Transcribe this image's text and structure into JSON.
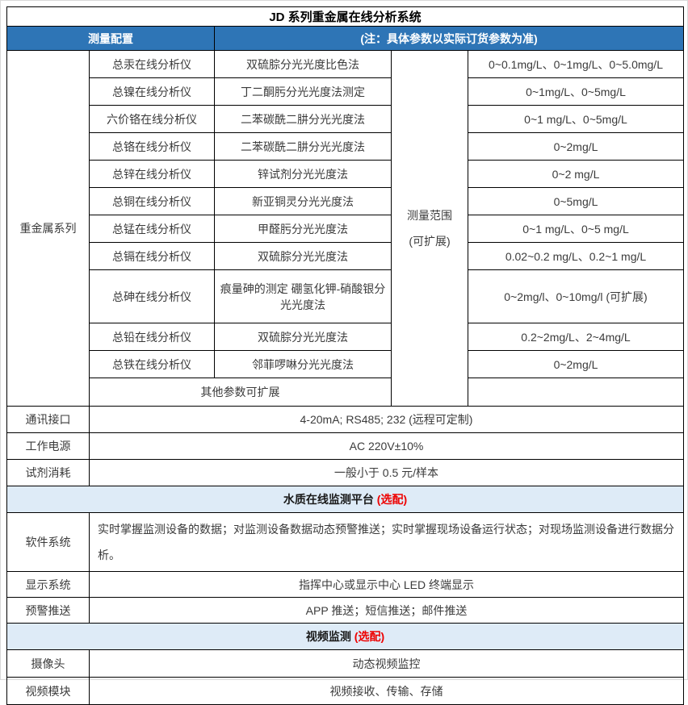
{
  "title": "JD 系列重金属在线分析系统",
  "header": {
    "left": "测量配置",
    "right": "(注：具体参数以实际订货参数为准)"
  },
  "series": {
    "group_label": "重金属系列",
    "range_label_line1": "测量范围",
    "range_label_line2": "(可扩展)",
    "rows": [
      {
        "instrument": "总汞在线分析仪",
        "method": "双硫腙分光光度比色法",
        "range": "0~0.1mg/L、0~1mg/L、0~5.0mg/L"
      },
      {
        "instrument": "总镍在线分析仪",
        "method": "丁二酮肟分光光度法测定",
        "range": "0~1mg/L、0~5mg/L"
      },
      {
        "instrument": "六价铬在线分析仪",
        "method": "二苯碳酰二肼分光光度法",
        "range": "0~1 mg/L、0~5mg/L"
      },
      {
        "instrument": "总铬在线分析仪",
        "method": "二苯碳酰二肼分光光度法",
        "range": "0~2mg/L"
      },
      {
        "instrument": "总锌在线分析仪",
        "method": "锌试剂分光光度法",
        "range": "0~2 mg/L"
      },
      {
        "instrument": "总铜在线分析仪",
        "method": "新亚铜灵分光光度法",
        "range": "0~5mg/L"
      },
      {
        "instrument": "总锰在线分析仪",
        "method": "甲醛肟分光光度法",
        "range": "0~1 mg/L、0~5 mg/L"
      },
      {
        "instrument": "总镉在线分析仪",
        "method": "双硫腙分光光度法",
        "range": "0.02~0.2 mg/L、0.2~1 mg/L"
      },
      {
        "instrument": "总砷在线分析仪",
        "method": "痕量砷的测定 硼氢化钾-硝酸银分光光度法",
        "range": "0~2mg/l、0~10mg/l (可扩展)"
      },
      {
        "instrument": "总铅在线分析仪",
        "method": "双硫腙分光光度法",
        "range": "0.2~2mg/L、2~4mg/L"
      },
      {
        "instrument": "总铁在线分析仪",
        "method": "邻菲啰啉分光光度法",
        "range": "0~2mg/L"
      }
    ],
    "footer": "其他参数可扩展",
    "footer_range": ""
  },
  "specs": [
    {
      "label": "通讯接口",
      "value": "4-20mA; RS485; 232 (远程可定制)"
    },
    {
      "label": "工作电源",
      "value": "AC 220V±10%"
    },
    {
      "label": "试剂消耗",
      "value": "一般小于 0.5 元/样本"
    }
  ],
  "platform_section": {
    "title": "水质在线监测平台",
    "badge": "(选配)",
    "rows": [
      {
        "label": "软件系统",
        "value": "实时掌握监测设备的数据；对监测设备数据动态预警推送；实时掌握现场设备运行状态；对现场监测设备进行数据分析。"
      },
      {
        "label": "显示系统",
        "value": "指挥中心或显示中心 LED 终端显示"
      },
      {
        "label": "预警推送",
        "value": "APP 推送；短信推送；邮件推送"
      }
    ]
  },
  "video_section": {
    "title": "视频监测",
    "badge": "(选配)",
    "rows": [
      {
        "label": "摄像头",
        "value": "动态视频监控"
      },
      {
        "label": "视频模块",
        "value": "视频接收、传输、存储"
      }
    ]
  }
}
